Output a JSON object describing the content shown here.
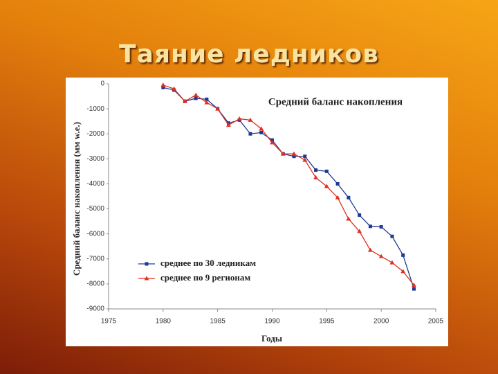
{
  "title": "Таяние ледников",
  "chart_data": {
    "type": "line",
    "title": "Средний баланс накопления",
    "y_label": "Средний баланс накопления (мм w.e.)",
    "x_label": "Годы",
    "x": [
      1980,
      1981,
      1982,
      1983,
      1984,
      1985,
      1986,
      1987,
      1988,
      1989,
      1990,
      1991,
      1992,
      1993,
      1994,
      1995,
      1996,
      1997,
      1998,
      1999,
      2000,
      2001,
      2002,
      2003
    ],
    "series": [
      {
        "name": "среднее по 30 ледникам",
        "color": "#1f3a93",
        "marker": "square",
        "values": [
          -150,
          -250,
          -700,
          -580,
          -620,
          -1000,
          -1570,
          -1450,
          -2000,
          -1950,
          -2250,
          -2800,
          -2900,
          -2900,
          -3450,
          -3500,
          -4000,
          -4550,
          -5250,
          -5700,
          -5720,
          -6100,
          -6850,
          -8200
        ]
      },
      {
        "name": "среднее по 9 регионам",
        "color": "#e03020",
        "marker": "triangle",
        "values": [
          -50,
          -200,
          -700,
          -450,
          -750,
          -1000,
          -1650,
          -1400,
          -1450,
          -1800,
          -2350,
          -2800,
          -2800,
          -3050,
          -3750,
          -4100,
          -4550,
          -5400,
          -5900,
          -6650,
          -6900,
          -7150,
          -7500,
          -8050
        ]
      }
    ],
    "xlim": [
      1975,
      2005
    ],
    "xticks": [
      1975,
      1980,
      1985,
      1990,
      1995,
      2000,
      2005
    ],
    "ylim": [
      -9000,
      0
    ],
    "yticks": [
      0,
      -1000,
      -2000,
      -3000,
      -4000,
      -5000,
      -6000,
      -7000,
      -8000,
      -9000
    ],
    "grid": false,
    "legend": "lower left"
  }
}
